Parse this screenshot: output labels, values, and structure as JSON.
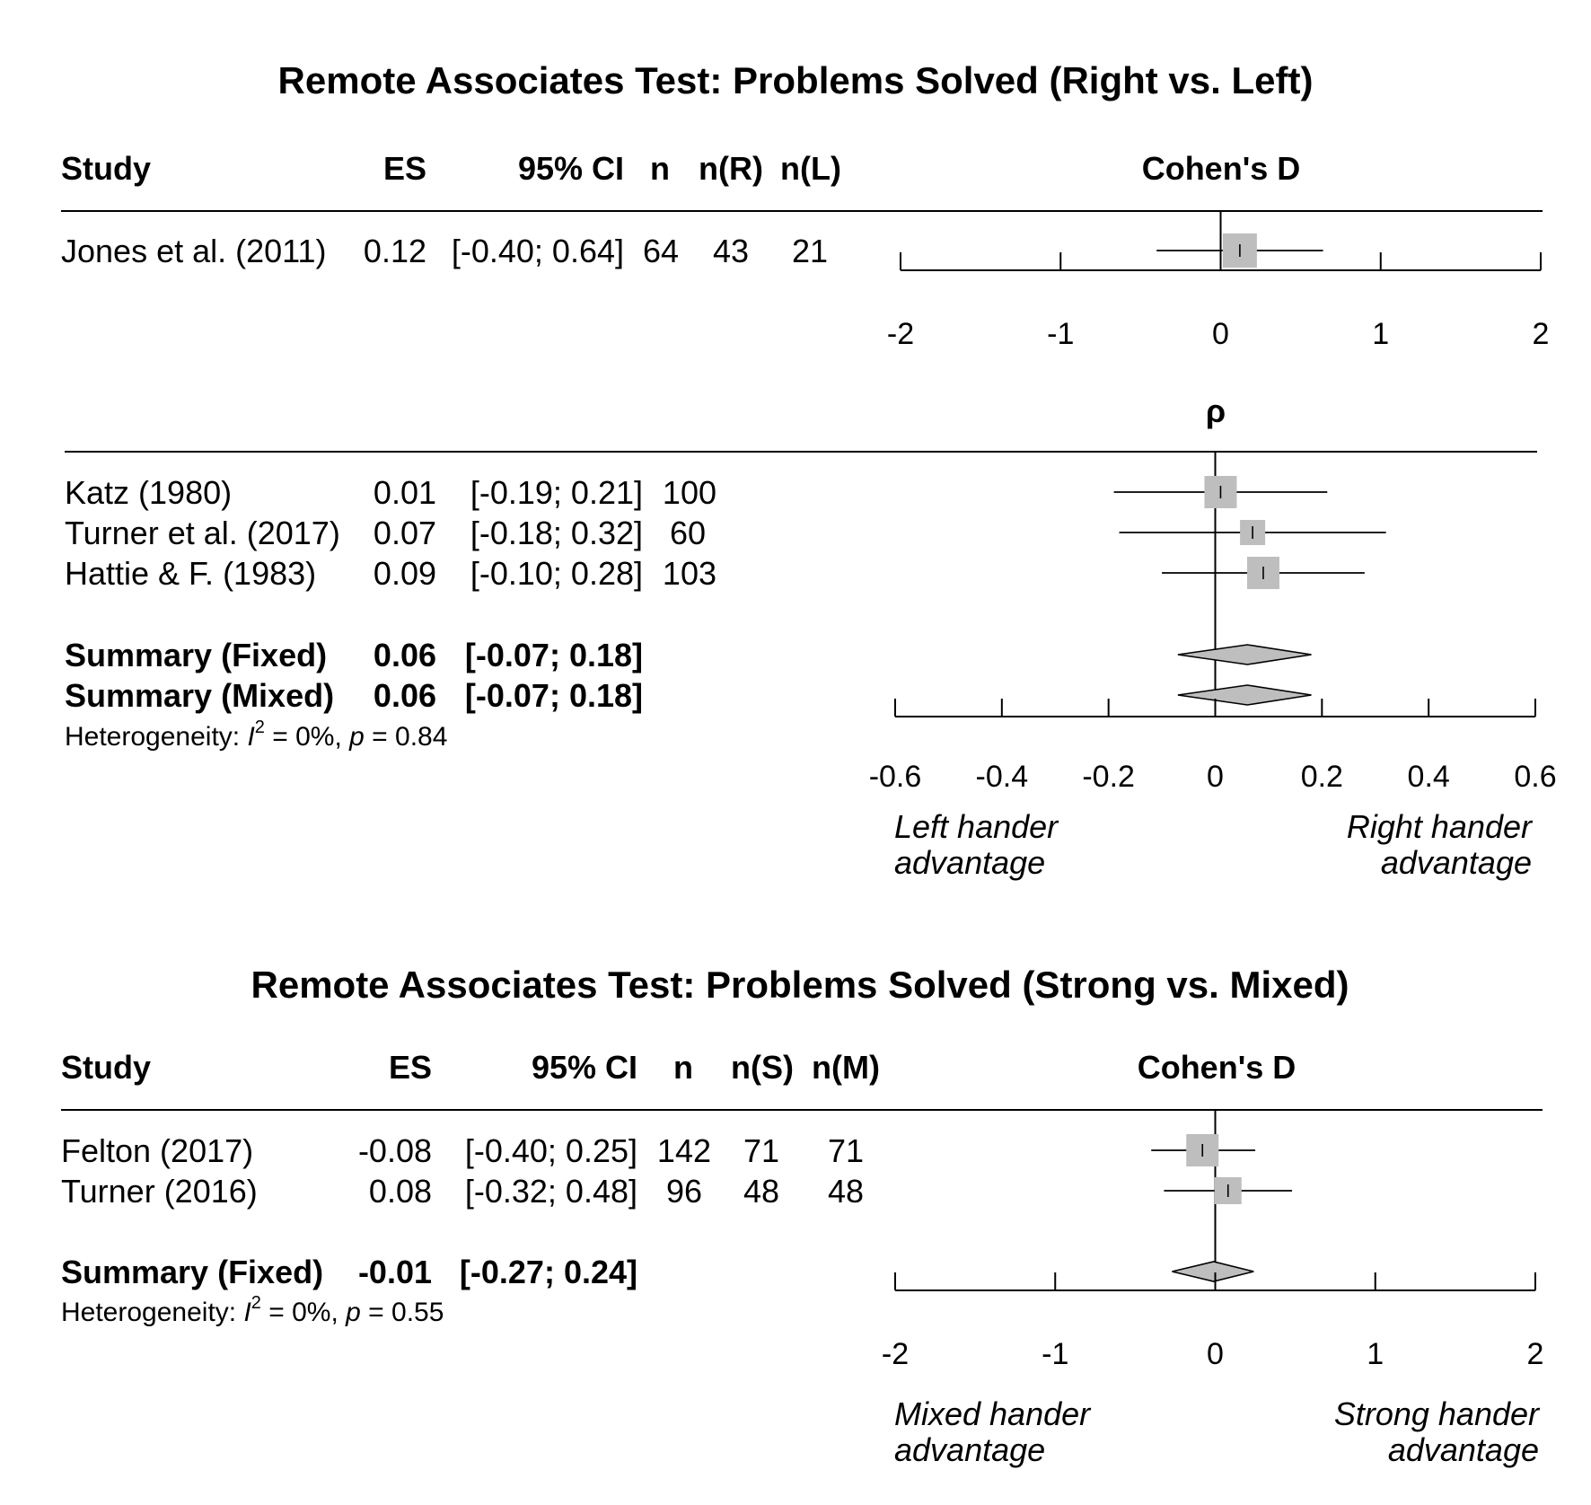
{
  "panels": [
    {
      "title": "Remote Associates Test: Problems Solved (Right vs. Left)",
      "sections": [
        {
          "headers": [
            "Study",
            "ES",
            "95% CI",
            "n",
            "n(R)",
            "n(L)"
          ],
          "axis_label": "Cohen's D",
          "rows": [
            {
              "study": "Jones et al. (2011)",
              "es": "0.12",
              "ci": "[-0.40; 0.64]",
              "n": "64",
              "n1": "43",
              "n2": "21"
            }
          ],
          "summaries": [],
          "heterogeneity": null,
          "axis_ticks": [
            "-2",
            "-1",
            "0",
            "1",
            "2"
          ],
          "advantage_labels": null
        },
        {
          "headers": [],
          "axis_label": "ρ",
          "rows": [
            {
              "study": "Katz (1980)",
              "es": "0.01",
              "ci": "[-0.19; 0.21]",
              "n": "100"
            },
            {
              "study": "Turner et al. (2017)",
              "es": "0.07",
              "ci": "[-0.18; 0.32]",
              "n": "60"
            },
            {
              "study": "Hattie & F. (1983)",
              "es": "0.09",
              "ci": "[-0.10; 0.28]",
              "n": "103"
            }
          ],
          "summaries": [
            {
              "label": "Summary (Fixed)",
              "es": "0.06",
              "ci": "[-0.07; 0.18]"
            },
            {
              "label": "Summary (Mixed)",
              "es": "0.06",
              "ci": "[-0.07; 0.18]"
            }
          ],
          "heterogeneity": {
            "prefix": "Heterogeneity: ",
            "i2_symbol": "I",
            "i2_sup": "2",
            "i2_value": " = 0%, ",
            "p_symbol": "p",
            "p_value": " = 0.84"
          },
          "axis_ticks": [
            "-0.6",
            "-0.4",
            "-0.2",
            "0",
            "0.2",
            "0.4",
            "0.6"
          ],
          "advantage_labels": {
            "left": [
              "Left hander",
              "advantage"
            ],
            "right": [
              "Right hander",
              "advantage"
            ]
          }
        }
      ]
    },
    {
      "title": "Remote Associates Test: Problems Solved (Strong vs. Mixed)",
      "sections": [
        {
          "headers": [
            "Study",
            "ES",
            "95% CI",
            "n",
            "n(S)",
            "n(M)"
          ],
          "axis_label": "Cohen's D",
          "rows": [
            {
              "study": "Felton (2017)",
              "es": "-0.08",
              "ci": "[-0.40; 0.25]",
              "n": "142",
              "n1": "71",
              "n2": "71"
            },
            {
              "study": "Turner (2016)",
              "es": "0.08",
              "ci": "[-0.32; 0.48]",
              "n": "96",
              "n1": "48",
              "n2": "48"
            }
          ],
          "summaries": [
            {
              "label": "Summary (Fixed)",
              "es": "-0.01",
              "ci": "[-0.27; 0.24]"
            }
          ],
          "heterogeneity": {
            "prefix": "Heterogeneity: ",
            "i2_symbol": "I",
            "i2_sup": "2",
            "i2_value": " = 0%, ",
            "p_symbol": "p",
            "p_value": " = 0.55"
          },
          "axis_ticks": [
            "-2",
            "-1",
            "0",
            "1",
            "2"
          ],
          "advantage_labels": {
            "left": [
              "Mixed hander",
              "advantage"
            ],
            "right": [
              "Strong hander",
              "advantage"
            ]
          }
        }
      ]
    }
  ],
  "chart_data": [
    {
      "type": "forest",
      "title": "Remote Associates Test: Problems Solved (Right vs. Left)",
      "xlabel": "Cohen's D",
      "xlim": [
        -2,
        2
      ],
      "studies": [
        {
          "name": "Jones et al. (2011)",
          "es": 0.12,
          "ci_low": -0.4,
          "ci_high": 0.64,
          "n": 64,
          "n_r": 43,
          "n_l": 21
        }
      ]
    },
    {
      "type": "forest",
      "title": "",
      "xlabel": "ρ",
      "xlim": [
        -0.6,
        0.6
      ],
      "studies": [
        {
          "name": "Katz (1980)",
          "es": 0.01,
          "ci_low": -0.19,
          "ci_high": 0.21,
          "n": 100
        },
        {
          "name": "Turner et al. (2017)",
          "es": 0.07,
          "ci_low": -0.18,
          "ci_high": 0.32,
          "n": 60
        },
        {
          "name": "Hattie & F. (1983)",
          "es": 0.09,
          "ci_low": -0.1,
          "ci_high": 0.28,
          "n": 103
        }
      ],
      "summaries": [
        {
          "name": "Summary (Fixed)",
          "es": 0.06,
          "ci_low": -0.07,
          "ci_high": 0.18
        },
        {
          "name": "Summary (Mixed)",
          "es": 0.06,
          "ci_low": -0.07,
          "ci_high": 0.18
        }
      ],
      "heterogeneity": {
        "I2_percent": 0,
        "p": 0.84
      }
    },
    {
      "type": "forest",
      "title": "Remote Associates Test: Problems Solved (Strong vs. Mixed)",
      "xlabel": "Cohen's D",
      "xlim": [
        -2,
        2
      ],
      "studies": [
        {
          "name": "Felton (2017)",
          "es": -0.08,
          "ci_low": -0.4,
          "ci_high": 0.25,
          "n": 142,
          "n_s": 71,
          "n_m": 71
        },
        {
          "name": "Turner (2016)",
          "es": 0.08,
          "ci_low": -0.32,
          "ci_high": 0.48,
          "n": 96,
          "n_s": 48,
          "n_m": 48
        }
      ],
      "summaries": [
        {
          "name": "Summary (Fixed)",
          "es": -0.01,
          "ci_low": -0.27,
          "ci_high": 0.24
        }
      ],
      "heterogeneity": {
        "I2_percent": 0,
        "p": 0.55
      }
    }
  ]
}
